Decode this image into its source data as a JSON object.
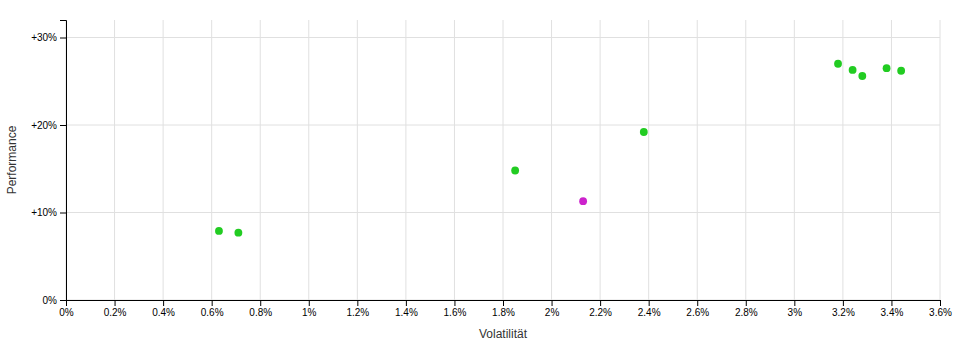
{
  "chart_data": {
    "type": "scatter",
    "xlabel": "Volatilität",
    "ylabel": "Performance",
    "marker": "circle",
    "grid": true,
    "xlim": [
      0.0,
      0.036
    ],
    "ylim": [
      0.0,
      0.32
    ],
    "xticks": [
      {
        "value": 0.0,
        "label": "0%"
      },
      {
        "value": 0.002,
        "label": "0.2%"
      },
      {
        "value": 0.004,
        "label": "0.4%"
      },
      {
        "value": 0.006,
        "label": "0.6%"
      },
      {
        "value": 0.008,
        "label": "0.8%"
      },
      {
        "value": 0.01,
        "label": "1%"
      },
      {
        "value": 0.012,
        "label": "1.2%"
      },
      {
        "value": 0.014,
        "label": "1.4%"
      },
      {
        "value": 0.016,
        "label": "1.6%"
      },
      {
        "value": 0.018,
        "label": "1.8%"
      },
      {
        "value": 0.02,
        "label": "2%"
      },
      {
        "value": 0.022,
        "label": "2.2%"
      },
      {
        "value": 0.024,
        "label": "2.4%"
      },
      {
        "value": 0.026,
        "label": "2.6%"
      },
      {
        "value": 0.028,
        "label": "2.8%"
      },
      {
        "value": 0.03,
        "label": "3%"
      },
      {
        "value": 0.032,
        "label": "3.2%"
      },
      {
        "value": 0.034,
        "label": "3.4%"
      },
      {
        "value": 0.036,
        "label": "3.6%"
      }
    ],
    "yticks": [
      {
        "value": 0.0,
        "label": "0%"
      },
      {
        "value": 0.1,
        "label": "+10%"
      },
      {
        "value": 0.2,
        "label": "+20%"
      },
      {
        "value": 0.3,
        "label": "+30%"
      }
    ],
    "series": [
      {
        "color": "#22cc22",
        "x": [
          0.0063,
          0.0071,
          0.0185,
          0.0238,
          0.0318,
          0.0324,
          0.0328,
          0.0338,
          0.0344
        ],
        "values": [
          0.079,
          0.077,
          0.148,
          0.192,
          0.27,
          0.263,
          0.256,
          0.265,
          0.262
        ]
      },
      {
        "color": "#cc22cc",
        "x": [
          0.0213
        ],
        "values": [
          0.113
        ]
      }
    ]
  }
}
